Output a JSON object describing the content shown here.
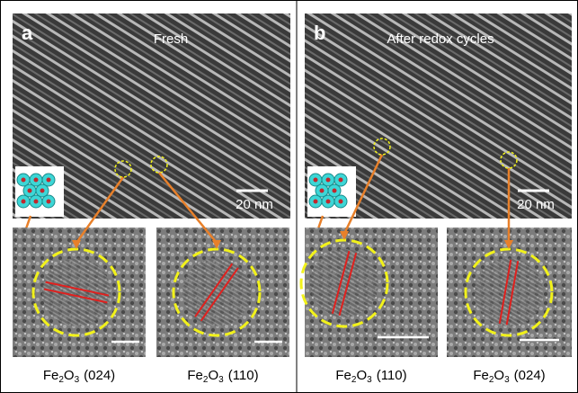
{
  "panels": [
    {
      "label": "a",
      "title": "Fresh",
      "scale": "20 nm",
      "insets": [
        {
          "formula": [
            "Fe",
            "2",
            "O",
            "3"
          ],
          "plane": "(024)"
        },
        {
          "formula": [
            "Fe",
            "2",
            "O",
            "3"
          ],
          "plane": "(110)"
        }
      ]
    },
    {
      "label": "b",
      "title": "After redox cycles",
      "scale": "20 nm",
      "insets": [
        {
          "formula": [
            "Fe",
            "2",
            "O",
            "3"
          ],
          "plane": "(110)"
        },
        {
          "formula": [
            "Fe",
            "2",
            "O",
            "3"
          ],
          "plane": "(024)"
        }
      ]
    }
  ]
}
